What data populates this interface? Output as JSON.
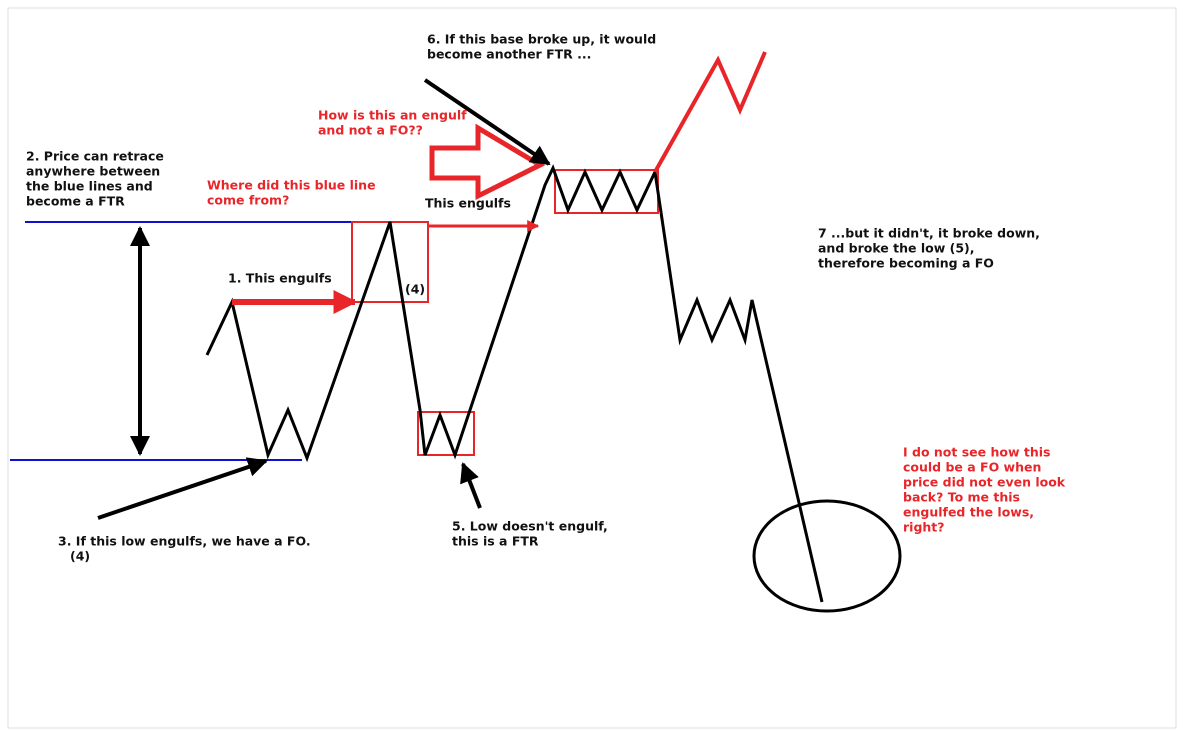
{
  "annotations": [
    {
      "lines": [
        "6. If this base broke up, it would",
        "become another FTR ..."
      ]
    },
    {
      "lines": [
        "How is this an engulf",
        "and not a FO??"
      ]
    },
    {
      "lines": [
        "2. Price can retrace",
        "anywhere between",
        "the blue lines and",
        "become a FTR"
      ]
    },
    {
      "lines": [
        "Where did this blue line",
        "come from?"
      ]
    },
    {
      "lines": [
        "This engulfs"
      ]
    },
    {
      "lines": [
        "1. This engulfs"
      ]
    },
    {
      "lines": [
        "(4)"
      ]
    },
    {
      "lines": [
        "7 ...but it didn't, it broke down,",
        "and broke the low (5),",
        "therefore becoming a FO"
      ]
    },
    {
      "lines": [
        "I do not see how this",
        "could be a FO when",
        "price did not even look",
        "back? To me this",
        "engulfed the lows,",
        "right?"
      ]
    },
    {
      "lines": [
        "3. If this low engulfs, we have a FO.",
        "(4)"
      ]
    },
    {
      "lines": [
        "5. Low doesn't engulf,",
        "this is a FTR"
      ]
    }
  ]
}
